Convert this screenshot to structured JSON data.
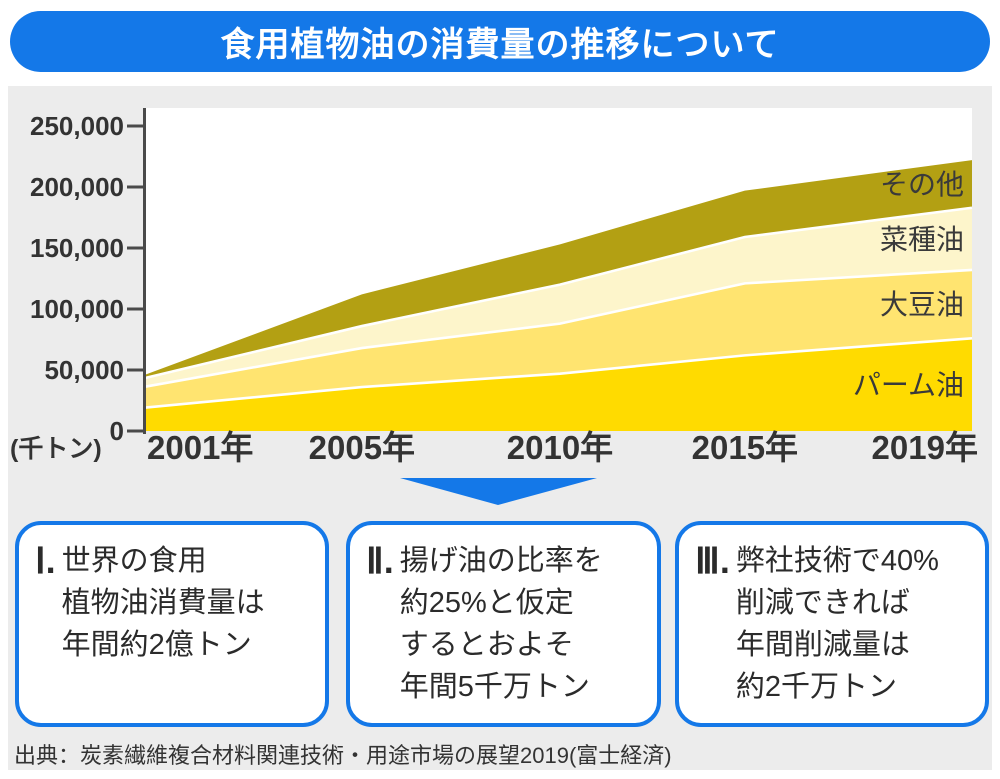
{
  "title": "食用植物油の消費量の推移について",
  "chart_data": {
    "type": "area",
    "stacked": true,
    "x": [
      2001,
      2005,
      2010,
      2015,
      2019
    ],
    "x_tick_labels": [
      "2001年",
      "2005年",
      "2010年",
      "2015年",
      "2019年"
    ],
    "unit_label": "(千トン)",
    "ylim": [
      0,
      250000
    ],
    "y_ticks": [
      0,
      50000,
      100000,
      150000,
      200000,
      250000
    ],
    "y_tick_labels": [
      "0",
      "50,000",
      "100,000",
      "150,000",
      "200,000",
      "250,000"
    ],
    "grid": false,
    "legend_position": "inside-right",
    "series": [
      {
        "name": "パーム油",
        "slug": "palm-oil",
        "color": "#FFDB00",
        "values": [
          19000,
          36000,
          47000,
          62000,
          76000
        ]
      },
      {
        "name": "大豆油",
        "slug": "soybean-oil",
        "color": "#FFE470",
        "values": [
          17000,
          32000,
          41000,
          59000,
          56000
        ]
      },
      {
        "name": "菜種油",
        "slug": "rapeseed-oil",
        "color": "#FDF5CB",
        "values": [
          7000,
          18000,
          32000,
          38000,
          51000
        ]
      },
      {
        "name": "その他",
        "slug": "other-oils",
        "color": "#B3A013",
        "values": [
          2500,
          26000,
          33000,
          38000,
          39000
        ]
      }
    ]
  },
  "callouts": [
    {
      "numeral": "Ⅰ.",
      "lines": [
        "世界の食用",
        "植物油消費量は",
        "年間約2億トン"
      ]
    },
    {
      "numeral": "Ⅱ.",
      "lines": [
        "揚げ油の比率を",
        "約25%と仮定",
        "するとおよそ",
        "年間5千万トン"
      ]
    },
    {
      "numeral": "Ⅲ.",
      "lines": [
        "弊社技術で40%",
        "削減できれば",
        "年間削減量は",
        "約2千万トン"
      ]
    }
  ],
  "source": "出典：炭素繊維複合材料関連技術・用途市場の展望2019(富士経済)",
  "colors": {
    "accent_blue": "#1478E8",
    "panel_gray": "#ECECEC",
    "text_dark": "#333333",
    "axis_gray": "#4a4a4a",
    "separator_white": "#ffffff"
  }
}
